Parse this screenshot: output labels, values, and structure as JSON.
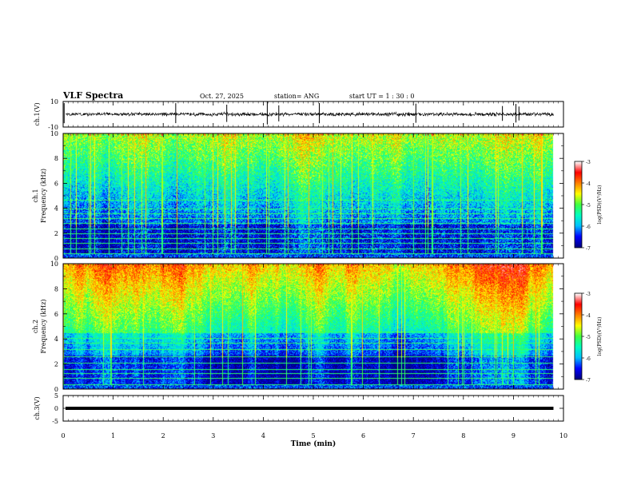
{
  "header": {
    "title": "VLF Spectra",
    "date": "Oct. 27, 2025",
    "station": "station= ANG",
    "start": "start  UT =   1 : 30 : 0"
  },
  "chart_data": {
    "type": "heatmap",
    "xlabel": "Time  (min)",
    "xlim": [
      0,
      10
    ],
    "x_ticks": [
      "0",
      "1",
      "2",
      "3",
      "4",
      "5",
      "6",
      "7",
      "8",
      "9",
      "10"
    ],
    "data_end_min": 9.8,
    "panels": [
      {
        "id": "ch1-waveform",
        "ylabel": "ch.1(V)",
        "ylim": [
          -10,
          10
        ],
        "y_ticks": [
          "10",
          "-10"
        ],
        "baseline_v": 0,
        "noise_amplitude_v": 1.2,
        "spike_times_min": [
          0.02,
          2.25,
          3.27,
          4.08,
          4.31,
          5.12,
          7.05,
          8.78,
          9.05,
          9.11
        ]
      },
      {
        "id": "ch1-spectrogram",
        "ylabel": "ch.1\nFrequency  (kHz)",
        "ylim": [
          0,
          10
        ],
        "y_ticks": [
          "0",
          "2",
          "4",
          "6",
          "8",
          "10"
        ],
        "colorbar": {
          "label": "log(PSD)(V²/Hz)",
          "range": [
            -7,
            -3
          ],
          "ticks": [
            "-3",
            "-4",
            "-5",
            "-6",
            "-7"
          ]
        },
        "narrowband_lines_khz": [
          0.4,
          0.8,
          1.25,
          1.6,
          2.0,
          2.4,
          2.8,
          3.2,
          3.6,
          4.0,
          4.7
        ]
      },
      {
        "id": "ch2-spectrogram",
        "ylabel": "ch.2\nFrequency  (kHz)",
        "ylim": [
          0,
          10
        ],
        "y_ticks": [
          "0",
          "2",
          "4",
          "6",
          "8",
          "10"
        ],
        "colorbar": {
          "label": "log(PSD)(V²/Hz)",
          "range": [
            -7,
            -3
          ],
          "ticks": [
            "-3",
            "-4",
            "-5",
            "-6",
            "-7"
          ]
        },
        "narrowband_lines_khz": [
          0.4,
          0.9,
          1.25,
          1.6,
          2.1,
          2.6,
          3.2,
          3.7,
          4.1,
          4.6
        ]
      },
      {
        "id": "ch3-waveform",
        "ylabel": "ch.3(V)",
        "ylim": [
          -5,
          5
        ],
        "y_ticks": [
          "5",
          "0",
          "-5"
        ],
        "baseline_v": 0
      }
    ],
    "colormap": [
      "#000080",
      "#0000ff",
      "#00c0ff",
      "#00ffc0",
      "#40ff40",
      "#ffff00",
      "#ff8000",
      "#ff0000",
      "#ffffff"
    ]
  }
}
